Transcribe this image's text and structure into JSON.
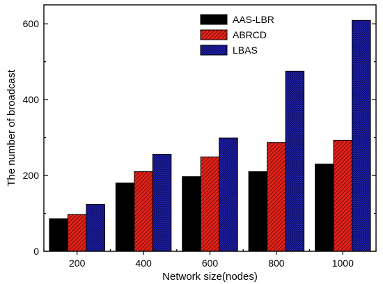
{
  "chart_data": {
    "type": "bar",
    "xlabel": "Network size(nodes)",
    "ylabel": "The number of broadcast",
    "categories": [
      "200",
      "400",
      "600",
      "800",
      "1000"
    ],
    "ylim": [
      0,
      650
    ],
    "yticks": [
      0,
      200,
      400,
      600
    ],
    "grid": false,
    "legend_position": "top-center",
    "series": [
      {
        "name": "AAS-LBR",
        "values": [
          86,
          180,
          197,
          210,
          230
        ],
        "color": "#000000",
        "pattern": "solid"
      },
      {
        "name": "ABRCD",
        "values": [
          97,
          210,
          249,
          287,
          293
        ],
        "color": "#e2231a",
        "pattern": "diagonal-hatch"
      },
      {
        "name": "LBAS",
        "values": [
          124,
          256,
          299,
          475,
          609
        ],
        "color": "#2323c8",
        "pattern": "cross-hatch"
      }
    ]
  }
}
